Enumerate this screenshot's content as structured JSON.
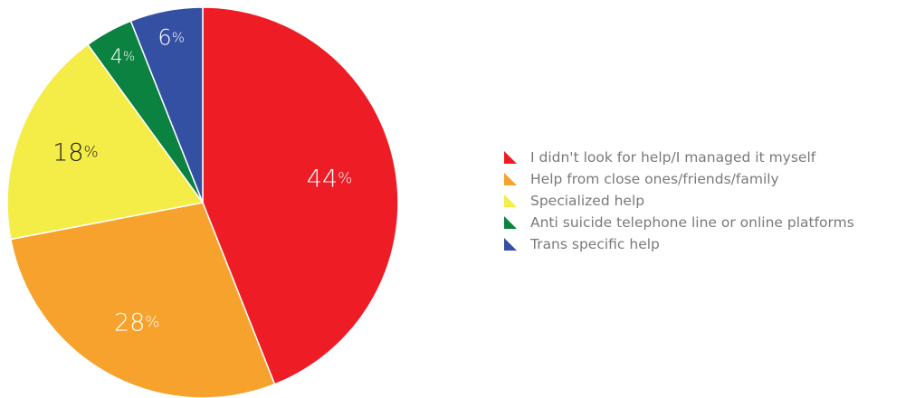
{
  "chart_data": {
    "type": "pie",
    "title": "",
    "start_angle_deg": 0,
    "direction": "clockwise",
    "legend_position": "right",
    "series": [
      {
        "name": "I didn't look for help/I managed it myself",
        "value": 44,
        "label": "44",
        "color": "#ee1c25"
      },
      {
        "name": "Help from close ones/friends/family",
        "value": 28,
        "label": "28",
        "color": "#f6a22d"
      },
      {
        "name": "Specialized help",
        "value": 18,
        "label": "18",
        "color": "#f4ec47"
      },
      {
        "name": "Anti suicide telephone line or online platforms",
        "value": 4,
        "label": "4",
        "color": "#0b8240"
      },
      {
        "name": "Trans specific help",
        "value": 6,
        "label": "6",
        "color": "#3450a3"
      }
    ],
    "percent_symbol": "%",
    "slice_label_color": "#ffffff",
    "slice_label_dark_color": "#231f20"
  }
}
